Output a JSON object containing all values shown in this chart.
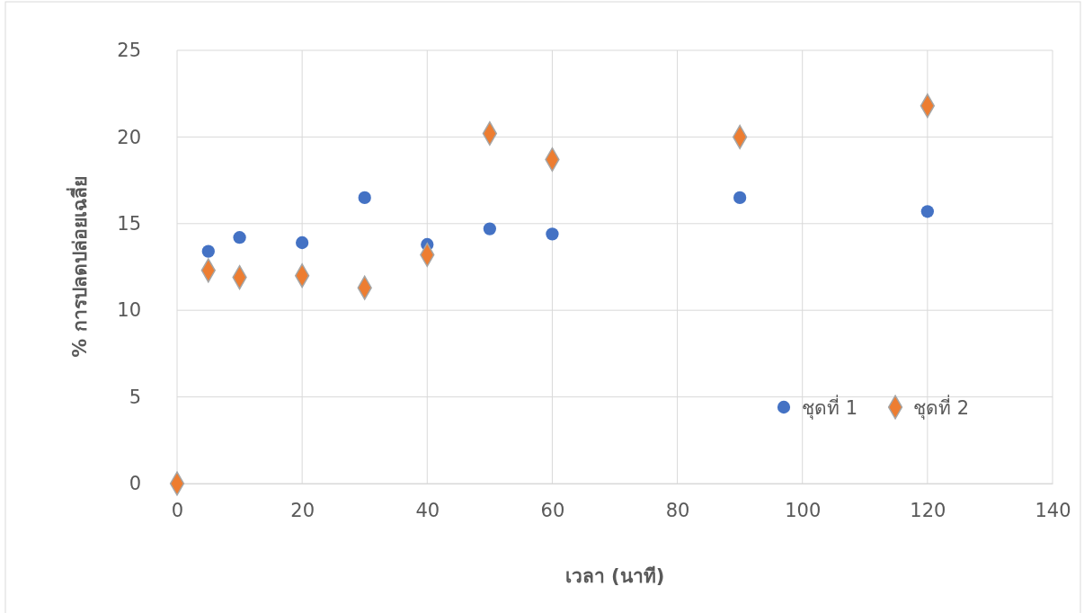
{
  "chart_data": {
    "type": "scatter",
    "xlabel": "เวลา (นาที)",
    "ylabel": "% การปลดปล่อยเฉลี่ย",
    "xlim": [
      0,
      140
    ],
    "xticks": [
      0,
      20,
      40,
      60,
      80,
      100,
      120,
      140
    ],
    "ylim": [
      0,
      25
    ],
    "yticks": [
      0,
      5,
      10,
      15,
      20,
      25
    ],
    "grid": true,
    "legend": "bottom right",
    "series": [
      {
        "name": "ชุดที่ 1",
        "color": "#4472c4",
        "marker": "circle",
        "x": [
          5,
          10,
          20,
          30,
          40,
          50,
          60,
          90,
          120
        ],
        "values": [
          13.4,
          14.2,
          13.9,
          16.5,
          13.8,
          14.7,
          14.4,
          16.5,
          15.7
        ]
      },
      {
        "name": "ชุดที่ 2",
        "color": "#ed7d31",
        "marker": "diamond",
        "x": [
          0,
          5,
          10,
          20,
          30,
          40,
          50,
          60,
          90,
          120
        ],
        "values": [
          0,
          12.3,
          11.9,
          12.0,
          11.3,
          13.2,
          20.2,
          18.7,
          20.0,
          21.8
        ]
      }
    ]
  }
}
